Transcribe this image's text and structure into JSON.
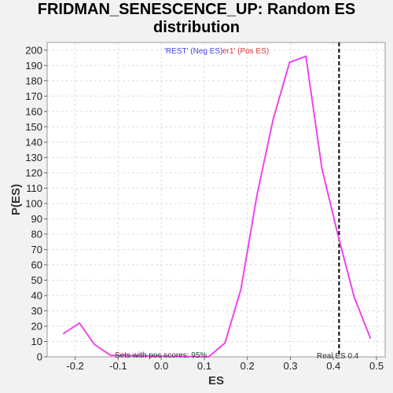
{
  "chart_data": {
    "type": "line",
    "title_line1": "FRIDMAN_SENESCENCE_UP: Random ES",
    "title_line2": "distribution",
    "xlabel": "ES",
    "ylabel": "P(ES)",
    "xlim": [
      -0.265,
      0.52
    ],
    "ylim": [
      0,
      205
    ],
    "xticks": [
      -0.2,
      -0.1,
      0.0,
      0.1,
      0.2,
      0.3,
      0.4,
      0.5
    ],
    "xtick_labels": [
      "-0.2",
      "-0.1",
      "0.0",
      "0.1",
      "0.2",
      "0.3",
      "0.4",
      "0.5"
    ],
    "yticks": [
      0,
      10,
      20,
      30,
      40,
      50,
      60,
      70,
      80,
      90,
      100,
      110,
      120,
      130,
      140,
      150,
      160,
      170,
      180,
      190,
      200
    ],
    "grid": true,
    "series": [
      {
        "color": "#ee44ee",
        "x": [
          -0.228,
          -0.19,
          -0.155,
          -0.118,
          0.11,
          0.148,
          0.185,
          0.222,
          0.26,
          0.298,
          0.336,
          0.373,
          0.41,
          0.448,
          0.486
        ],
        "y": [
          15,
          22,
          8,
          1,
          0,
          9,
          44,
          105,
          155,
          192,
          196,
          123,
          80,
          39,
          12
        ]
      }
    ],
    "real_es": 0.413,
    "annotations": {
      "legend_neg": "'REST' (Neg ES)",
      "legend_pos": "er1' (Pos ES)",
      "pos_scores": "Sets with pos scores: 95%",
      "real_es_label": "Real ES 0.4"
    },
    "colors": {
      "neg": "#4444dd",
      "pos": "#dd3333",
      "line": "#ee44ee",
      "marker": "#000000"
    }
  }
}
